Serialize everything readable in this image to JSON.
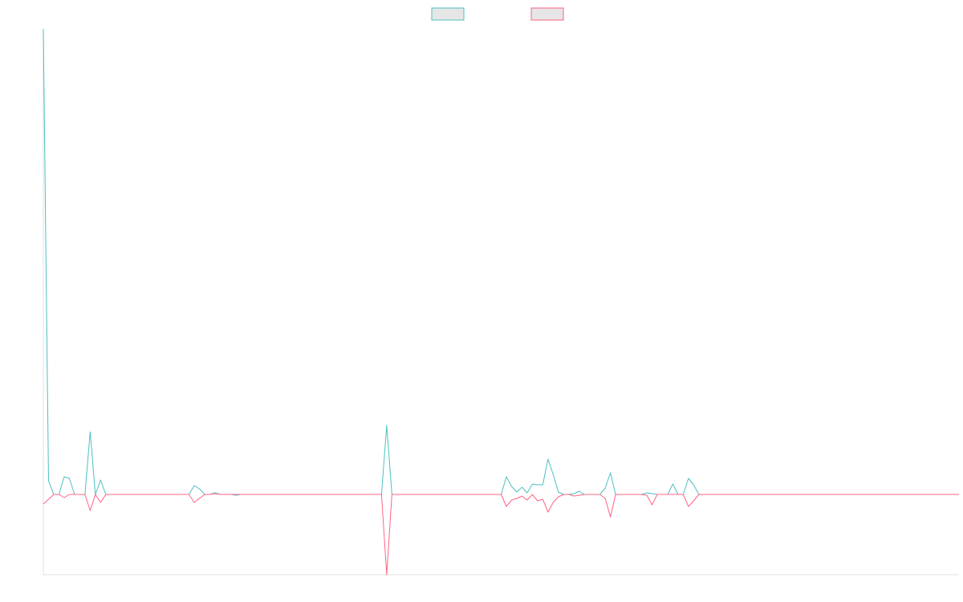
{
  "chart_data": {
    "type": "line",
    "categories": [
      null,
      null,
      null,
      null,
      null,
      null,
      null,
      null,
      null,
      null,
      null,
      null,
      null,
      null,
      null,
      null,
      null,
      null,
      null,
      null,
      null,
      null,
      null,
      null,
      null,
      null,
      null,
      null,
      null,
      null,
      null,
      null,
      null,
      null,
      null,
      null,
      null,
      null,
      null,
      null,
      null,
      null,
      null,
      null,
      null,
      null,
      null,
      null,
      null,
      null,
      null,
      null,
      null,
      null,
      null,
      null,
      null,
      null,
      null,
      null,
      null,
      null,
      null,
      null,
      null,
      null,
      null,
      null,
      null,
      null,
      null,
      null,
      null,
      null,
      null,
      null,
      null,
      null,
      null,
      null,
      null,
      null,
      null,
      null,
      null,
      null,
      null,
      null,
      null,
      null,
      null,
      null,
      null,
      null,
      null,
      null,
      null,
      null,
      null,
      null,
      null,
      null,
      null,
      null,
      null,
      null,
      null,
      null,
      null,
      null,
      null,
      null,
      null,
      null,
      null,
      null,
      null,
      null,
      null,
      null,
      null,
      null,
      null,
      null,
      null,
      null,
      null,
      null,
      null,
      null,
      null,
      null,
      null,
      null,
      null,
      null,
      null,
      null,
      null,
      null,
      null,
      null,
      null,
      null,
      null,
      null,
      null,
      null,
      null,
      null,
      null,
      null,
      null,
      null,
      null,
      null,
      null,
      null,
      null,
      null,
      null,
      null,
      null,
      null,
      null,
      null,
      null,
      null,
      null,
      null,
      null,
      null,
      null,
      null,
      null,
      null,
      null
    ],
    "series": [
      {
        "color": "#4bc0c0",
        "values": [
          5.8,
          0.17,
          0,
          0,
          0.22,
          0.2,
          0,
          0,
          0,
          0.78,
          0,
          0.18,
          0,
          0,
          0,
          0,
          0,
          0,
          0,
          0,
          0,
          0,
          0,
          0,
          0,
          0,
          0,
          0,
          0,
          0.11,
          0.07,
          0,
          0,
          0.02,
          0,
          0,
          0,
          -0.01,
          0,
          0,
          0,
          0,
          0,
          0,
          0,
          0,
          0,
          0,
          0,
          0,
          0,
          0,
          0,
          0,
          0,
          0,
          0,
          0,
          0,
          0,
          0,
          0,
          0,
          0,
          0,
          0,
          0.86,
          0,
          0,
          0,
          0,
          0,
          0,
          0,
          0,
          0,
          0,
          0,
          0,
          0,
          0,
          0,
          0,
          0,
          0,
          0,
          0,
          0,
          0,
          0.22,
          0.1,
          0.03,
          0.09,
          0.02,
          0.13,
          0.12,
          0.12,
          0.44,
          0.25,
          0.03,
          0,
          0,
          0.01,
          0.04,
          0,
          0,
          0,
          0,
          0.08,
          0.27,
          0,
          0,
          0,
          0,
          0,
          0,
          0.02,
          0.01,
          0,
          0,
          0,
          0.13,
          0,
          0,
          0.2,
          0.12,
          0,
          0,
          0,
          0,
          0,
          0,
          0,
          0,
          0,
          0,
          0,
          0,
          0,
          0,
          0,
          0,
          0,
          0,
          0,
          0,
          0,
          0,
          0,
          0,
          0,
          0,
          0,
          0,
          0,
          0,
          0,
          0,
          0,
          0,
          0,
          0,
          0,
          0,
          0,
          0,
          0,
          0,
          0,
          0,
          0,
          0,
          0,
          0,
          0,
          0,
          0
        ]
      },
      {
        "color": "#ff6384",
        "values": [
          -0.12,
          -0.06,
          0,
          0,
          -0.04,
          0,
          0,
          0,
          0,
          -0.2,
          0,
          -0.1,
          0,
          0,
          0,
          0,
          0,
          0,
          0,
          0,
          0,
          0,
          0,
          0,
          0,
          0,
          0,
          0,
          0,
          -0.1,
          -0.05,
          0,
          0,
          0.01,
          0,
          0,
          0,
          0,
          0,
          0,
          0,
          0,
          0,
          0,
          0,
          0,
          0,
          0,
          0,
          0,
          0,
          0,
          0,
          0,
          0,
          0,
          0,
          0,
          0,
          0,
          0,
          0,
          0,
          0,
          0,
          0,
          -1,
          0,
          0,
          0,
          0,
          0,
          0,
          0,
          0,
          0,
          0,
          0,
          0,
          0,
          0,
          0,
          0,
          0,
          0,
          0,
          0,
          0,
          0,
          -0.15,
          -0.07,
          -0.05,
          -0.02,
          -0.07,
          0,
          -0.08,
          -0.06,
          -0.22,
          -0.1,
          -0.03,
          0,
          0,
          -0.02,
          -0.01,
          0,
          0,
          0,
          0,
          -0.05,
          -0.28,
          0,
          0,
          0,
          0,
          0,
          0,
          -0.01,
          -0.13,
          0,
          0,
          0,
          0,
          0,
          0,
          -0.15,
          -0.08,
          0,
          0,
          0,
          0,
          0,
          0,
          0,
          0,
          0,
          0,
          0,
          0,
          0,
          0,
          0,
          0,
          0,
          0,
          0,
          0,
          0,
          0,
          0,
          0,
          0,
          0,
          0,
          0,
          0,
          0,
          0,
          0,
          0,
          0,
          0,
          0,
          0,
          0,
          0,
          0,
          0,
          0,
          0,
          0,
          0,
          0,
          0,
          0,
          0,
          0,
          0
        ]
      }
    ],
    "ylim": [
      -1,
      5.8
    ],
    "grid": false,
    "legend": "top"
  }
}
